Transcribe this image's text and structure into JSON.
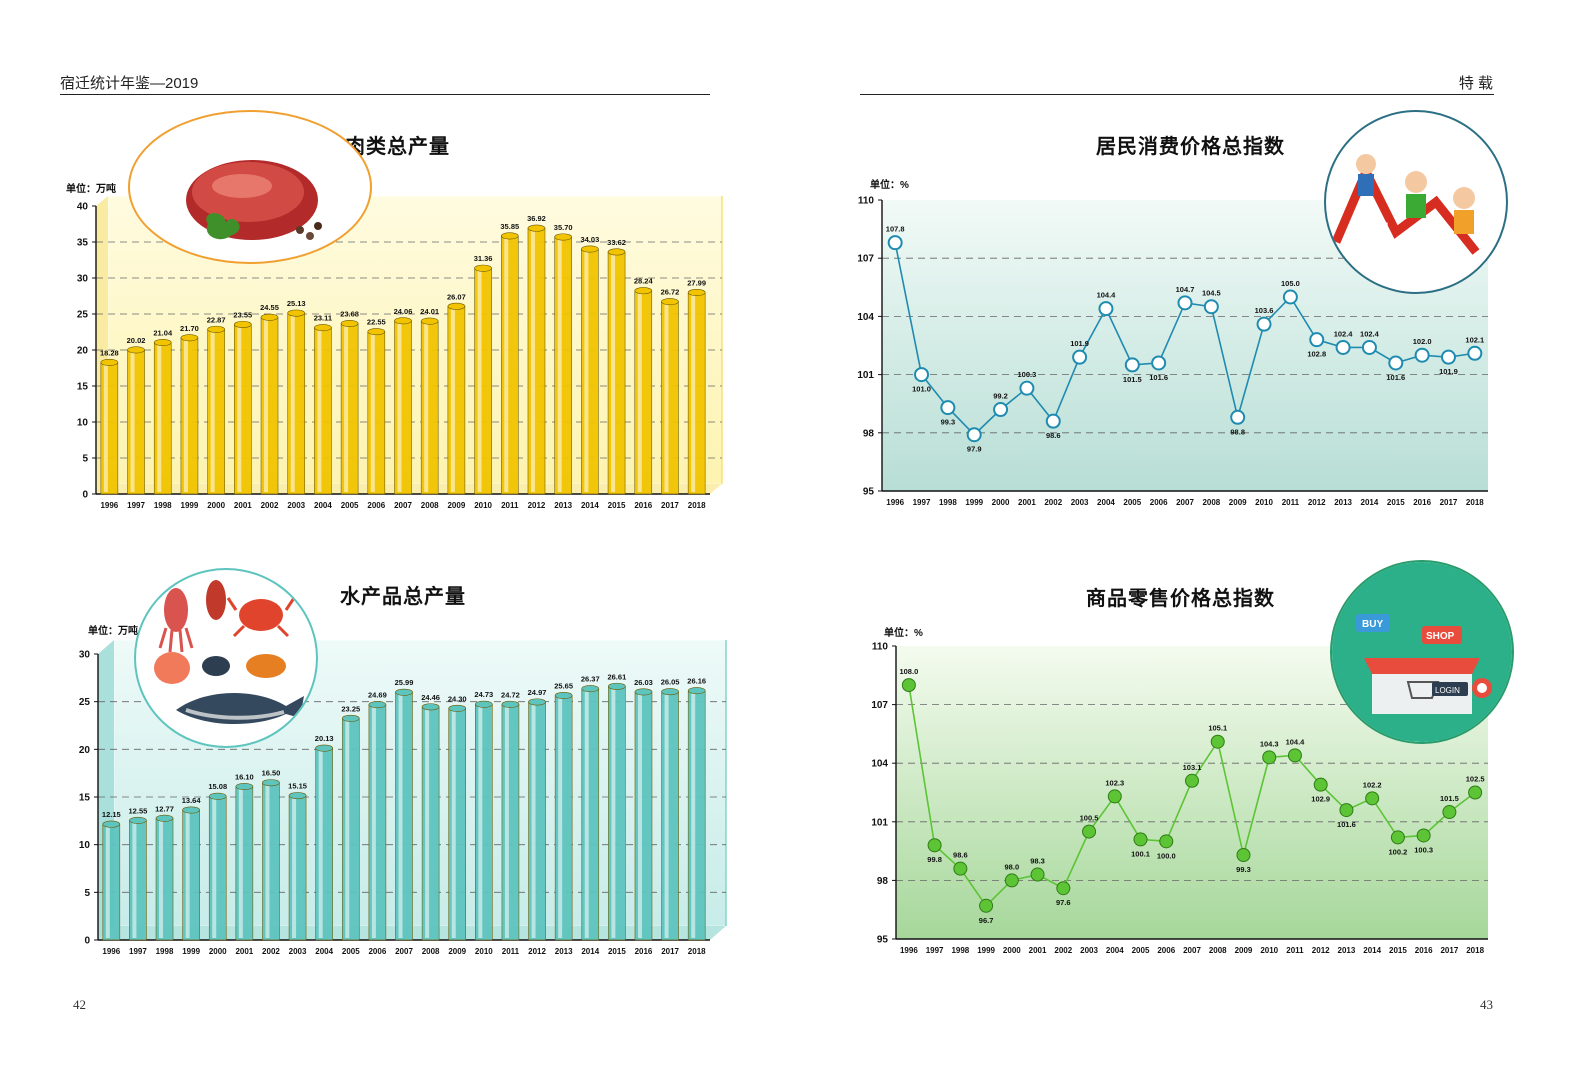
{
  "header": {
    "left": "宿迁统计年鉴—2019",
    "right": "特 载"
  },
  "page_numbers": {
    "left": "42",
    "right": "43"
  },
  "icons": {
    "meat": "meat-illustration",
    "seafood": "seafood-illustration",
    "cpi": "cpi-runners-illustration",
    "shop": "online-shop-illustration"
  },
  "chart_data": [
    {
      "id": "meat",
      "type": "bar",
      "title": "肉类总产量",
      "unit_label": "单位：万吨",
      "color": "#f2c400",
      "categories": [
        "1996",
        "1997",
        "1998",
        "1999",
        "2000",
        "2001",
        "2002",
        "2003",
        "2004",
        "2005",
        "2006",
        "2007",
        "2008",
        "2009",
        "2010",
        "2011",
        "2012",
        "2013",
        "2014",
        "2015",
        "2016",
        "2017",
        "2018"
      ],
      "values": [
        18.28,
        20.02,
        21.04,
        21.7,
        22.87,
        23.55,
        24.55,
        25.13,
        23.11,
        23.68,
        22.55,
        24.06,
        24.01,
        26.07,
        31.36,
        35.85,
        36.92,
        35.7,
        34.03,
        33.62,
        28.24,
        26.72,
        27.99
      ],
      "labels": [
        "18.28",
        "20.02",
        "21.04",
        "21.70",
        "22.87",
        "23.55",
        "24.55",
        "25.13",
        "23.11",
        "23.68",
        "22.55",
        "24.06",
        "24.01",
        "26.07",
        "31.36",
        "35.85",
        "36.92",
        "35.70",
        "34.03",
        "33.62",
        "28.24",
        "26.72",
        "27.99"
      ],
      "ylim": [
        0,
        40
      ],
      "yticks": [
        0,
        5,
        10,
        15,
        20,
        25,
        30,
        35,
        40
      ],
      "ytick_labels": [
        "0",
        "5",
        "10",
        "15",
        "20",
        "25",
        "30",
        "35",
        "40"
      ],
      "grid": true
    },
    {
      "id": "aquatic",
      "type": "bar",
      "title": "水产品总产量",
      "unit_label": "单位：万吨",
      "color": "#5ec4be",
      "categories": [
        "1996",
        "1997",
        "1998",
        "1999",
        "2000",
        "2001",
        "2002",
        "2003",
        "2004",
        "2005",
        "2006",
        "2007",
        "2008",
        "2009",
        "2010",
        "2011",
        "2012",
        "2013",
        "2014",
        "2015",
        "2016",
        "2017",
        "2018"
      ],
      "values": [
        12.15,
        12.55,
        12.77,
        13.64,
        15.08,
        16.1,
        16.5,
        15.15,
        20.13,
        23.25,
        24.69,
        25.99,
        24.46,
        24.3,
        24.73,
        24.72,
        24.97,
        25.65,
        26.37,
        26.61,
        26.03,
        26.05,
        26.16
      ],
      "labels": [
        "12.15",
        "12.55",
        "12.77",
        "13.64",
        "15.08",
        "16.10",
        "16.50",
        "15.15",
        "20.13",
        "23.25",
        "24.69",
        "25.99",
        "24.46",
        "24.30",
        "24.73",
        "24.72",
        "24.97",
        "25.65",
        "26.37",
        "26.61",
        "26.03",
        "26.05",
        "26.16"
      ],
      "ylim": [
        0,
        30
      ],
      "yticks": [
        0,
        5,
        10,
        15,
        20,
        25,
        30
      ],
      "ytick_labels": [
        "0",
        "5",
        "10",
        "15",
        "20",
        "25",
        "30"
      ],
      "grid": true
    },
    {
      "id": "cpi",
      "type": "line",
      "title": "居民消费价格总指数",
      "unit_label": "单位：%",
      "color": "#1f8bb0",
      "x": [
        "1996",
        "1997",
        "1998",
        "1999",
        "2000",
        "2001",
        "2002",
        "2003",
        "2004",
        "2005",
        "2006",
        "2007",
        "2008",
        "2009",
        "2010",
        "2011",
        "2012",
        "2013",
        "2014",
        "2015",
        "2016",
        "2017",
        "2018"
      ],
      "values": [
        107.8,
        101.0,
        99.3,
        97.9,
        99.2,
        100.3,
        98.6,
        101.9,
        104.4,
        101.5,
        101.6,
        104.7,
        104.5,
        98.8,
        103.6,
        105.0,
        102.8,
        102.4,
        102.4,
        101.6,
        102.0,
        101.9,
        102.1
      ],
      "labels": [
        "107.8",
        "101.0",
        "99.3",
        "97.9",
        "99.2",
        "100.3",
        "98.6",
        "101.9",
        "104.4",
        "101.5",
        "101.6",
        "104.7",
        "104.5",
        "98.8",
        "103.6",
        "105.0",
        "102.8",
        "102.4",
        "102.4",
        "101.6",
        "102.0",
        "101.9",
        "102.1"
      ],
      "label_pos": [
        "above",
        "below",
        "below",
        "below",
        "above",
        "above",
        "below",
        "above",
        "above",
        "below",
        "below",
        "above",
        "above",
        "below",
        "above",
        "above",
        "below",
        "above",
        "above",
        "below",
        "above",
        "below",
        "above"
      ],
      "ylim": [
        95,
        110
      ],
      "yticks": [
        95,
        98,
        101,
        104,
        107,
        110
      ],
      "ytick_labels": [
        "95",
        "98",
        "101",
        "104",
        "107",
        "110"
      ],
      "grid": true
    },
    {
      "id": "rpi",
      "type": "line",
      "title": "商品零售价格总指数",
      "unit_label": "单位：%",
      "color": "#5cc435",
      "x": [
        "1996",
        "1997",
        "1998",
        "1999",
        "2000",
        "2001",
        "2002",
        "2003",
        "2004",
        "2005",
        "2006",
        "2007",
        "2008",
        "2009",
        "2010",
        "2011",
        "2012",
        "2013",
        "2014",
        "2015",
        "2016",
        "2017",
        "2018"
      ],
      "values": [
        108.0,
        99.8,
        98.6,
        96.7,
        98.0,
        98.3,
        97.6,
        100.5,
        102.3,
        100.1,
        100.0,
        103.1,
        105.1,
        99.3,
        104.3,
        104.4,
        102.9,
        101.6,
        102.2,
        100.2,
        100.3,
        101.5,
        102.5
      ],
      "labels": [
        "108.0",
        "99.8",
        "98.6",
        "96.7",
        "98.0",
        "98.3",
        "97.6",
        "100.5",
        "102.3",
        "100.1",
        "100.0",
        "103.1",
        "105.1",
        "99.3",
        "104.3",
        "104.4",
        "102.9",
        "101.6",
        "102.2",
        "100.2",
        "100.3",
        "101.5",
        "102.5"
      ],
      "label_pos": [
        "above",
        "below",
        "above",
        "below",
        "above",
        "above",
        "below",
        "above",
        "above",
        "below",
        "below",
        "above",
        "above",
        "below",
        "above",
        "above",
        "below",
        "below",
        "above",
        "below",
        "below",
        "above",
        "above"
      ],
      "ylim": [
        95,
        110
      ],
      "yticks": [
        95,
        98,
        101,
        104,
        107,
        110
      ],
      "ytick_labels": [
        "95",
        "98",
        "101",
        "104",
        "107",
        "110"
      ],
      "grid": true
    }
  ]
}
